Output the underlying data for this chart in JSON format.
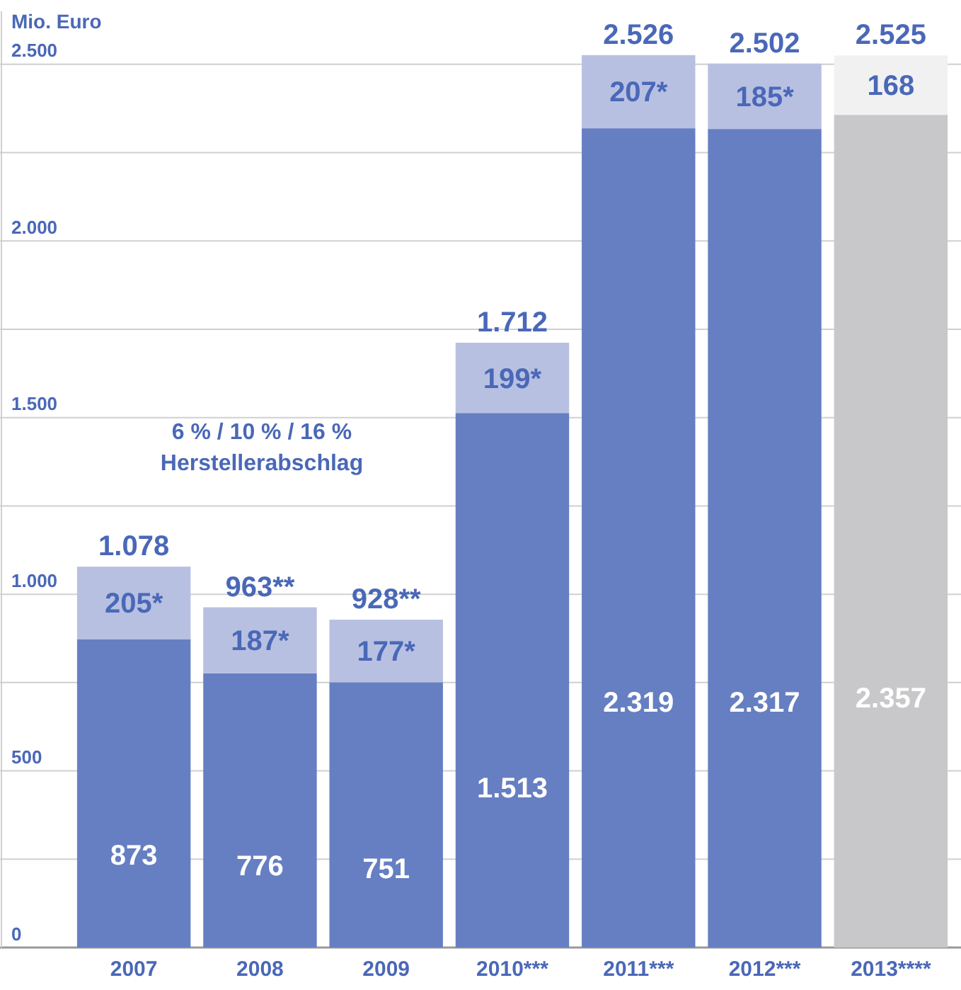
{
  "chart_data": {
    "type": "bar",
    "stacked": true,
    "ylabel": "Mio. Euro",
    "categories": [
      "2007",
      "2008",
      "2009",
      "2010***",
      "2011***",
      "2012***",
      "2013****"
    ],
    "series": [
      {
        "colors": [
          "#667fc2",
          "#667fc2",
          "#667fc2",
          "#667fc2",
          "#667fc2",
          "#667fc2",
          "#c8c8ca"
        ],
        "values": [
          873,
          776,
          751,
          1513,
          2319,
          2317,
          2357
        ],
        "value_labels": [
          "873",
          "776",
          "751",
          "1.513",
          "2.319",
          "2.317",
          "2.357"
        ]
      },
      {
        "colors": [
          "#b8c0e2",
          "#b8c0e2",
          "#b8c0e2",
          "#b8c0e2",
          "#b8c0e2",
          "#b8c0e2",
          "#f1f1f2"
        ],
        "values": [
          205,
          187,
          177,
          199,
          207,
          185,
          168
        ],
        "value_labels": [
          "205*",
          "187*",
          "177*",
          "199*",
          "207*",
          "185*",
          "168"
        ]
      }
    ],
    "totals": [
      "1.078",
      "963**",
      "928**",
      "1.712",
      "2.526",
      "2.502",
      "2.525"
    ],
    "ylim": [
      0,
      2650
    ],
    "yticks": [
      {
        "value": 0,
        "label": "0"
      },
      {
        "value": 250,
        "label": null
      },
      {
        "value": 500,
        "label": "500"
      },
      {
        "value": 750,
        "label": null
      },
      {
        "value": 1000,
        "label": "1.000"
      },
      {
        "value": 1250,
        "label": null
      },
      {
        "value": 1500,
        "label": "1.500"
      },
      {
        "value": 1750,
        "label": null
      },
      {
        "value": 2000,
        "label": "2.000"
      },
      {
        "value": 2250,
        "label": null
      },
      {
        "value": 2500,
        "label": "2.500"
      }
    ],
    "grid": "y",
    "annotations": [
      {
        "text": "6 % / 10 % / 16 % Herstellerabschlag"
      }
    ]
  }
}
